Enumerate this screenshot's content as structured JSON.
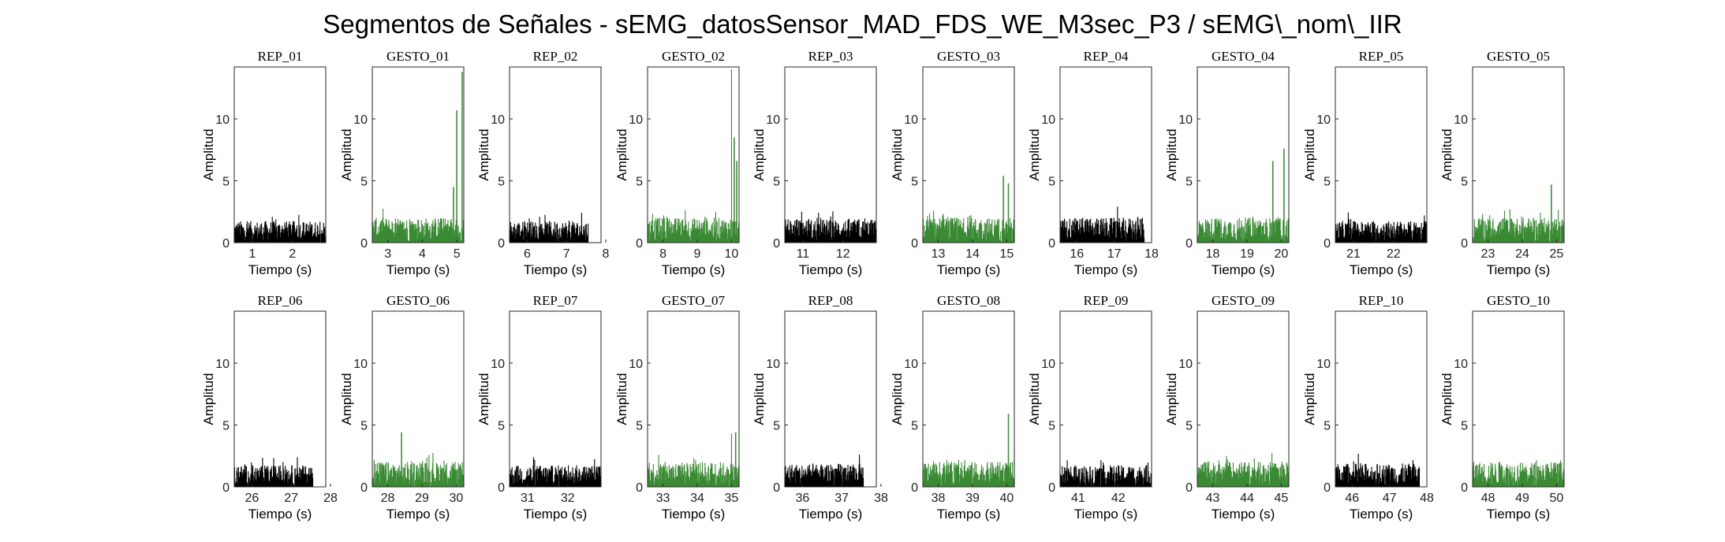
{
  "chart_data": {
    "type": "line",
    "title": "Segmentos de Señales - sEMG_datosSensor_MAD_FDS_WE_M3sec_P3 / sEMG\\_nom\\_IIR",
    "xlabel": "Tiempo (s)",
    "ylabel": "Amplitud",
    "ylim": [
      0,
      14.2
    ],
    "yticks": [
      0,
      5,
      10
    ],
    "grid": false,
    "colors": {
      "rep": "#000000",
      "gesto": "#3a8a34"
    },
    "subplots": [
      {
        "title": "REP_01",
        "kind": "rep",
        "xlim": [
          0.55,
          2.83
        ],
        "xticks": [
          1,
          2
        ],
        "t_start": 0.55,
        "t_end": 2.83,
        "baseline": 1.3,
        "peaks": []
      },
      {
        "title": "GESTO_01",
        "kind": "gesto",
        "xlim": [
          2.55,
          5.2
        ],
        "xticks": [
          3,
          4,
          5
        ],
        "t_start": 2.55,
        "t_end": 5.2,
        "baseline": 1.5,
        "peaks": [
          [
            4.9,
            4.5
          ],
          [
            5.0,
            10.7
          ],
          [
            5.15,
            13.8
          ]
        ]
      },
      {
        "title": "REP_02",
        "kind": "rep",
        "xlim": [
          5.55,
          7.88
        ],
        "xticks": [
          6,
          7,
          8
        ],
        "t_start": 5.55,
        "t_end": 7.55,
        "baseline": 1.3,
        "peaks": []
      },
      {
        "title": "GESTO_02",
        "kind": "gesto",
        "xlim": [
          7.55,
          10.22
        ],
        "xticks": [
          8,
          9,
          10
        ],
        "t_start": 7.55,
        "t_end": 10.22,
        "baseline": 1.5,
        "peaks": [
          [
            10.0,
            14.0
          ],
          [
            10.08,
            8.5
          ],
          [
            10.15,
            6.6
          ]
        ]
      },
      {
        "title": "REP_03",
        "kind": "rep",
        "xlim": [
          10.55,
          12.83
        ],
        "xticks": [
          11,
          12
        ],
        "t_start": 10.55,
        "t_end": 12.83,
        "baseline": 1.4,
        "peaks": []
      },
      {
        "title": "GESTO_03",
        "kind": "gesto",
        "xlim": [
          12.55,
          15.22
        ],
        "xticks": [
          13,
          14,
          15
        ],
        "t_start": 12.55,
        "t_end": 15.22,
        "baseline": 1.5,
        "peaks": [
          [
            14.9,
            5.4
          ],
          [
            15.05,
            4.8
          ]
        ]
      },
      {
        "title": "REP_04",
        "kind": "rep",
        "xlim": [
          15.55,
          18.0
        ],
        "xticks": [
          16,
          17,
          18
        ],
        "t_start": 15.55,
        "t_end": 17.8,
        "baseline": 1.5,
        "peaks": []
      },
      {
        "title": "GESTO_04",
        "kind": "gesto",
        "xlim": [
          17.55,
          20.22
        ],
        "xticks": [
          18,
          19,
          20
        ],
        "t_start": 17.55,
        "t_end": 20.22,
        "baseline": 1.5,
        "peaks": [
          [
            19.75,
            6.6
          ],
          [
            20.08,
            7.6
          ]
        ]
      },
      {
        "title": "REP_05",
        "kind": "rep",
        "xlim": [
          20.55,
          22.83
        ],
        "xticks": [
          21,
          22
        ],
        "t_start": 20.55,
        "t_end": 22.83,
        "baseline": 1.3,
        "peaks": []
      },
      {
        "title": "GESTO_05",
        "kind": "gesto",
        "xlim": [
          22.55,
          25.22
        ],
        "xticks": [
          23,
          24,
          25
        ],
        "t_start": 22.55,
        "t_end": 25.22,
        "baseline": 1.5,
        "peaks": [
          [
            24.85,
            4.7
          ]
        ]
      },
      {
        "title": "REP_06",
        "kind": "rep",
        "xlim": [
          25.55,
          27.88
        ],
        "xticks": [
          26,
          27,
          28
        ],
        "t_start": 25.55,
        "t_end": 27.55,
        "baseline": 1.3,
        "peaks": []
      },
      {
        "title": "GESTO_06",
        "kind": "gesto",
        "xlim": [
          27.55,
          30.22
        ],
        "xticks": [
          28,
          29,
          30
        ],
        "t_start": 27.55,
        "t_end": 30.22,
        "baseline": 1.5,
        "peaks": [
          [
            28.4,
            4.4
          ]
        ]
      },
      {
        "title": "REP_07",
        "kind": "rep",
        "xlim": [
          30.55,
          32.83
        ],
        "xticks": [
          31,
          32
        ],
        "t_start": 30.55,
        "t_end": 32.83,
        "baseline": 1.3,
        "peaks": []
      },
      {
        "title": "GESTO_07",
        "kind": "gesto",
        "xlim": [
          32.55,
          35.22
        ],
        "xticks": [
          33,
          34,
          35
        ],
        "t_start": 32.55,
        "t_end": 35.22,
        "baseline": 1.5,
        "peaks": [
          [
            35.0,
            4.3
          ],
          [
            35.12,
            4.4
          ]
        ]
      },
      {
        "title": "REP_08",
        "kind": "rep",
        "xlim": [
          35.55,
          37.88
        ],
        "xticks": [
          36,
          37,
          38
        ],
        "t_start": 35.55,
        "t_end": 37.55,
        "baseline": 1.4,
        "peaks": [
          [
            37.45,
            2.6
          ]
        ]
      },
      {
        "title": "GESTO_08",
        "kind": "gesto",
        "xlim": [
          37.55,
          40.22
        ],
        "xticks": [
          38,
          39,
          40
        ],
        "t_start": 37.55,
        "t_end": 40.22,
        "baseline": 1.5,
        "peaks": [
          [
            40.05,
            5.9
          ]
        ]
      },
      {
        "title": "REP_09",
        "kind": "rep",
        "xlim": [
          40.55,
          42.83
        ],
        "xticks": [
          41,
          42
        ],
        "t_start": 40.55,
        "t_end": 42.83,
        "baseline": 1.3,
        "peaks": []
      },
      {
        "title": "GESTO_09",
        "kind": "gesto",
        "xlim": [
          42.55,
          45.22
        ],
        "xticks": [
          43,
          44,
          45
        ],
        "t_start": 42.55,
        "t_end": 45.22,
        "baseline": 1.5,
        "peaks": []
      },
      {
        "title": "REP_10",
        "kind": "rep",
        "xlim": [
          45.55,
          48.0
        ],
        "xticks": [
          46,
          47,
          48
        ],
        "t_start": 45.55,
        "t_end": 47.8,
        "baseline": 1.4,
        "peaks": []
      },
      {
        "title": "GESTO_10",
        "kind": "gesto",
        "xlim": [
          47.55,
          50.22
        ],
        "xticks": [
          48,
          49,
          50
        ],
        "t_start": 47.55,
        "t_end": 50.22,
        "baseline": 1.5,
        "peaks": []
      }
    ]
  }
}
